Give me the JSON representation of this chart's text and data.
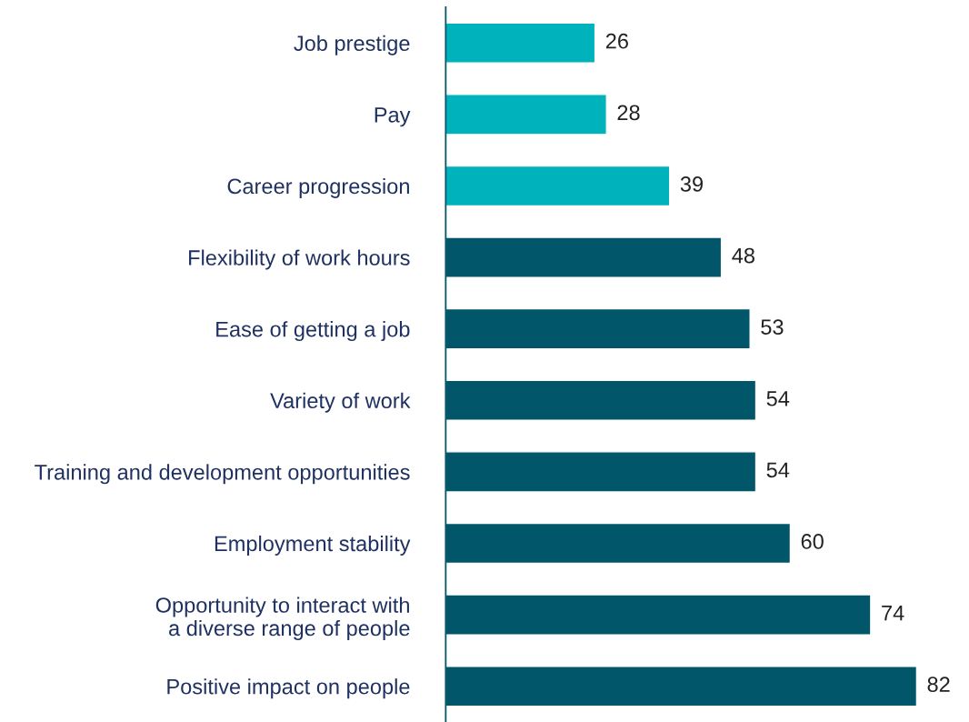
{
  "chart_data": {
    "type": "bar",
    "orientation": "horizontal",
    "categories": [
      "Job prestige",
      "Pay",
      "Career progression",
      "Flexibility of work hours",
      "Ease of getting a job",
      "Variety of work",
      "Training and development opportunities",
      "Employment stability",
      "Opportunity to interact with\na diverse range of people",
      "Positive impact on people"
    ],
    "values": [
      26,
      28,
      39,
      48,
      53,
      54,
      54,
      60,
      74,
      82
    ],
    "colors": [
      "#00b2bb",
      "#00b2bb",
      "#00b2bb",
      "#02566a",
      "#02566a",
      "#02566a",
      "#02566a",
      "#02566a",
      "#02566a",
      "#02566a"
    ],
    "data_labels": true,
    "grid": false,
    "legend": false
  }
}
